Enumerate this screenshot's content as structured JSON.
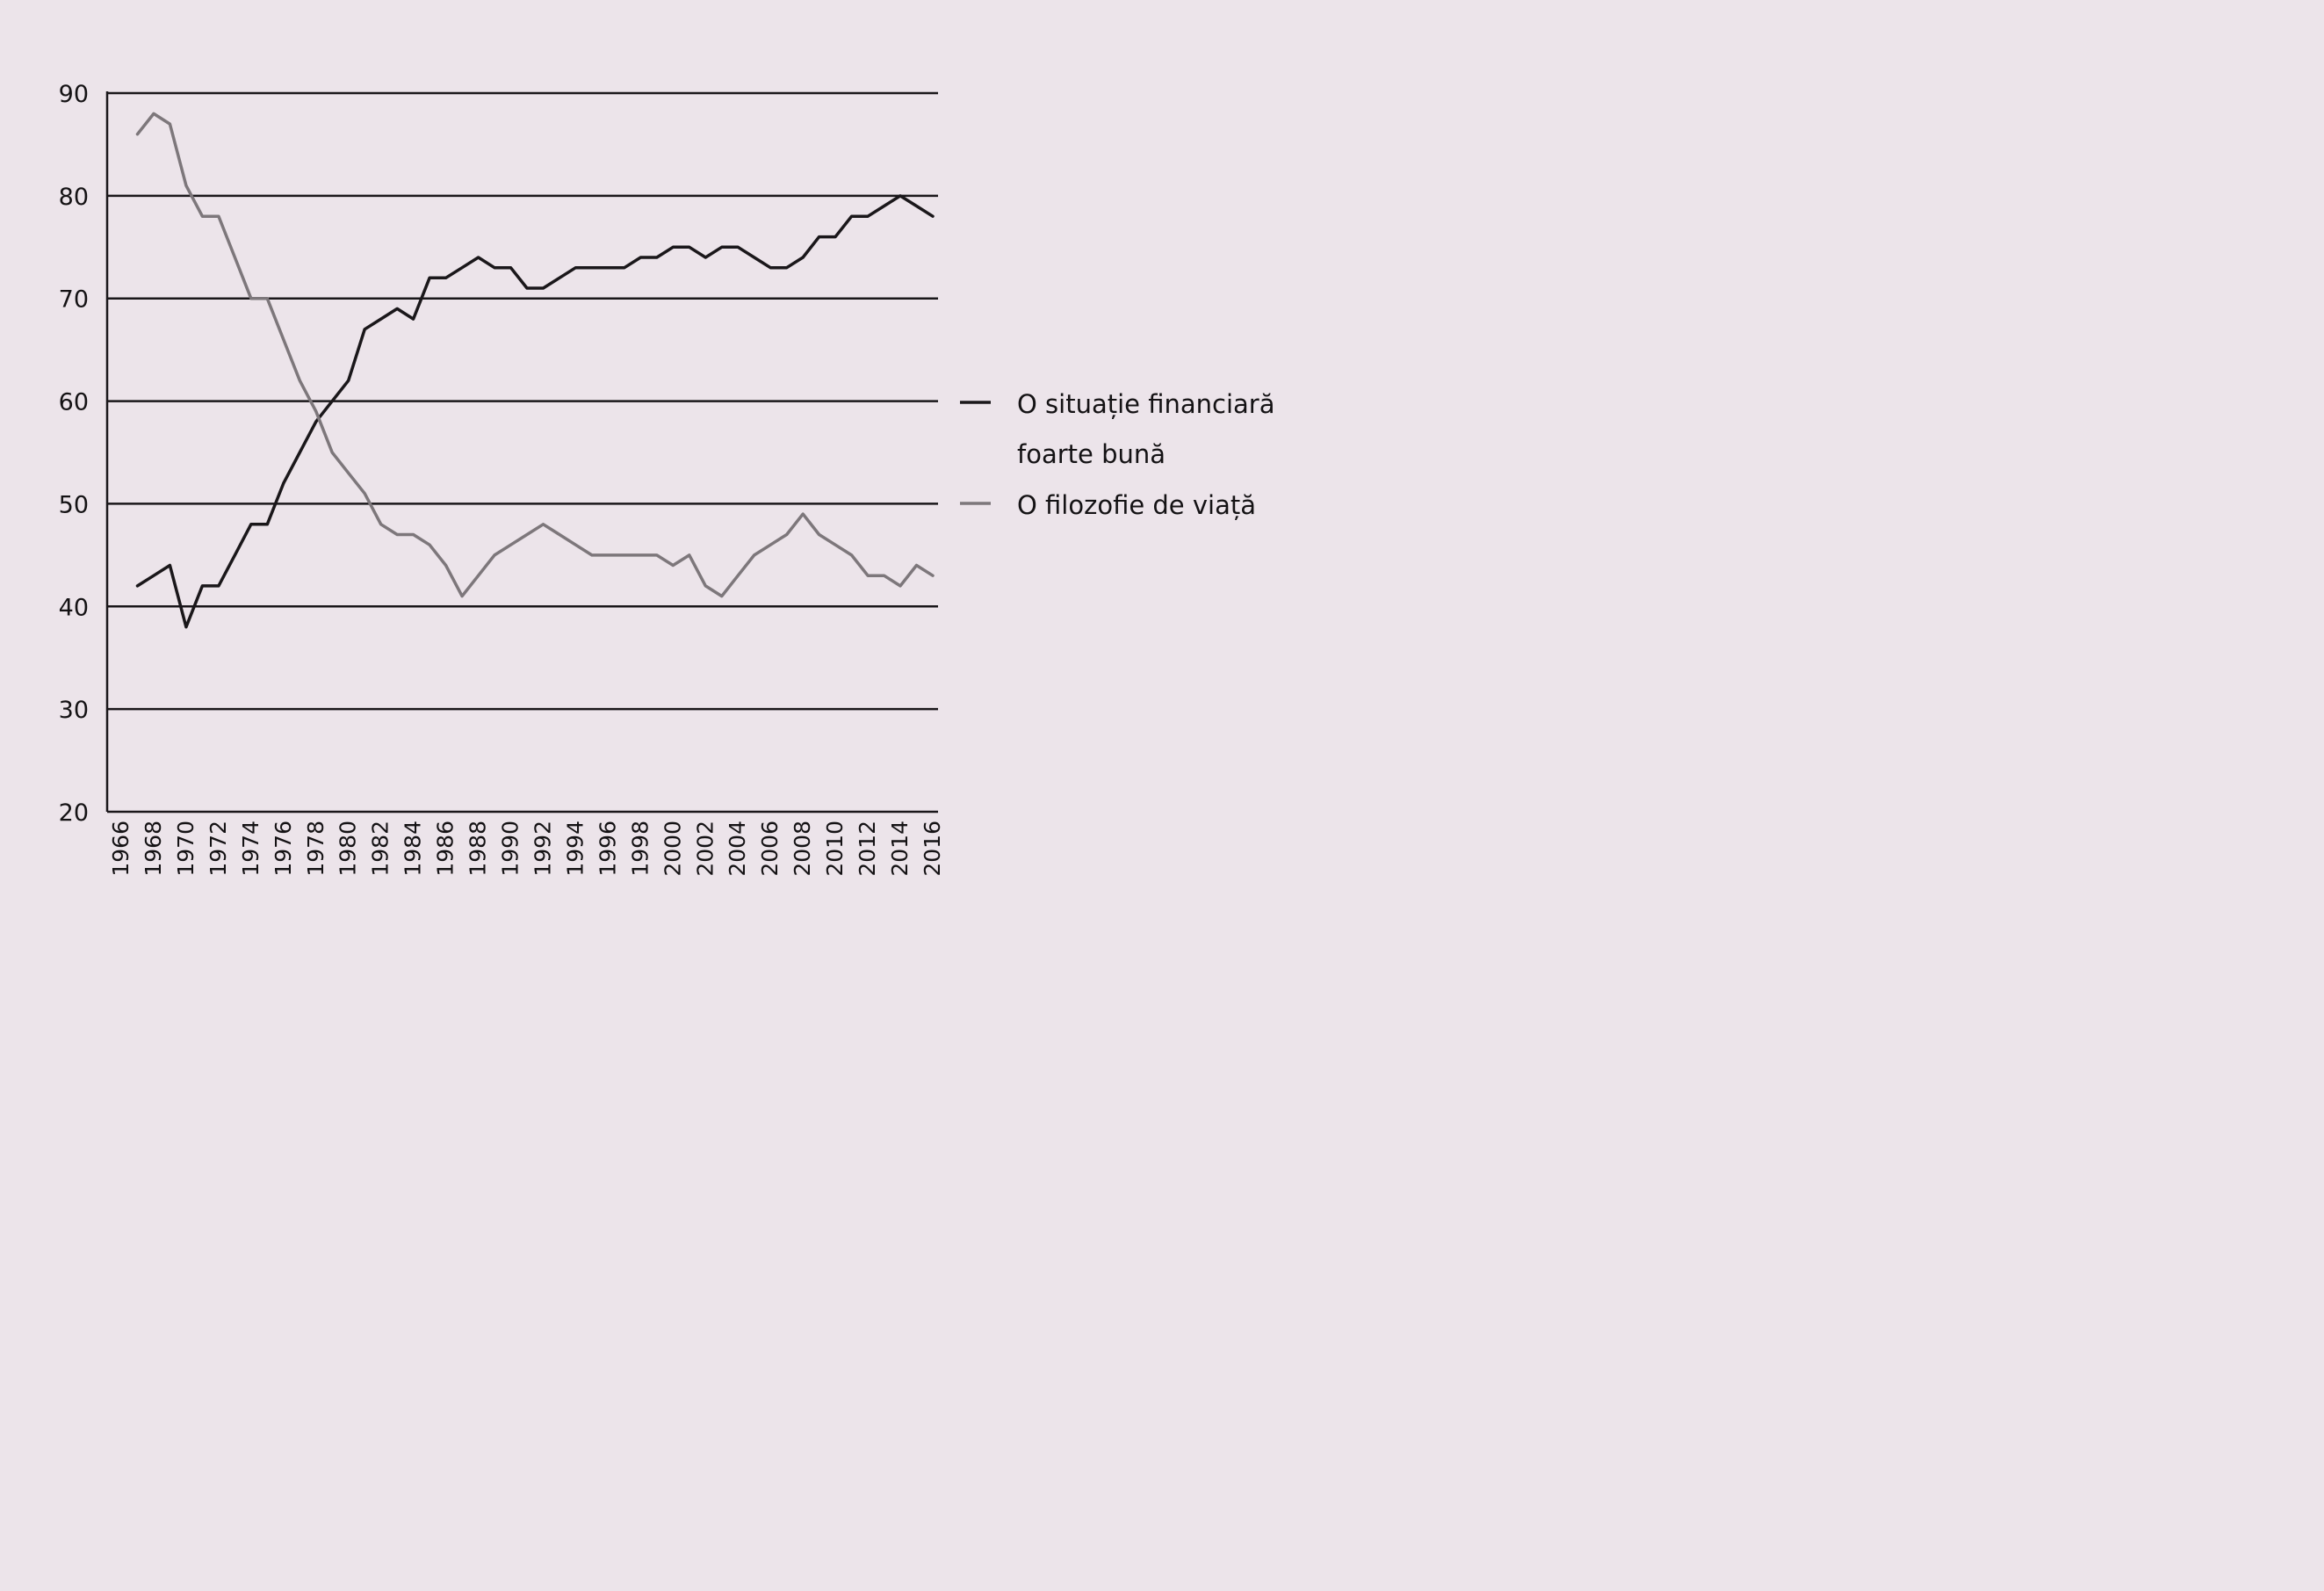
{
  "chart_data": {
    "type": "line",
    "title": "",
    "xlabel": "",
    "ylabel": "",
    "ylim": [
      20,
      90
    ],
    "yticks": [
      90,
      80,
      70,
      60,
      50,
      40,
      30,
      20
    ],
    "xticks": [
      1966,
      1968,
      1970,
      1972,
      1974,
      1976,
      1978,
      1980,
      1982,
      1984,
      1986,
      1988,
      1990,
      1992,
      1994,
      1996,
      1998,
      2000,
      2002,
      2004,
      2006,
      2008,
      2010,
      2012,
      2014,
      2016
    ],
    "grid": "horizontal",
    "legend_position": "right",
    "series": [
      {
        "name": "O situație financiară foarte bună",
        "legend_lines": [
          "O situație financiară",
          "foarte bună"
        ],
        "color": "#1a171a",
        "x": [
          1967,
          1968,
          1969,
          1970,
          1971,
          1972,
          1973,
          1974,
          1975,
          1976,
          1977,
          1978,
          1979,
          1980,
          1981,
          1982,
          1983,
          1984,
          1985,
          1986,
          1987,
          1988,
          1989,
          1990,
          1991,
          1992,
          1993,
          1994,
          1995,
          1996,
          1997,
          1998,
          1999,
          2000,
          2001,
          2002,
          2003,
          2004,
          2005,
          2006,
          2007,
          2008,
          2009,
          2010,
          2011,
          2012,
          2013,
          2014,
          2015,
          2016
        ],
        "y": [
          42,
          43,
          44,
          38,
          42,
          42,
          45,
          48,
          48,
          52,
          55,
          58,
          60,
          62,
          67,
          68,
          69,
          68,
          72,
          72,
          73,
          74,
          73,
          73,
          71,
          71,
          72,
          73,
          73,
          73,
          73,
          74,
          74,
          75,
          75,
          74,
          75,
          75,
          74,
          73,
          73,
          74,
          76,
          76,
          78,
          78,
          79,
          80,
          79,
          78
        ]
      },
      {
        "name": "O filozofie de viață",
        "legend_lines": [
          "O filozofie de viață"
        ],
        "color": "#7d777b",
        "x": [
          1967,
          1968,
          1969,
          1970,
          1971,
          1972,
          1973,
          1974,
          1975,
          1976,
          1977,
          1978,
          1979,
          1980,
          1981,
          1982,
          1983,
          1984,
          1985,
          1986,
          1987,
          1988,
          1989,
          1990,
          1991,
          1992,
          1993,
          1994,
          1995,
          1996,
          1997,
          1998,
          1999,
          2000,
          2001,
          2002,
          2003,
          2004,
          2005,
          2006,
          2007,
          2008,
          2009,
          2010,
          2011,
          2012,
          2013,
          2014,
          2015,
          2016
        ],
        "y": [
          86,
          88,
          87,
          81,
          78,
          78,
          74,
          70,
          70,
          66,
          62,
          59,
          55,
          53,
          51,
          48,
          47,
          47,
          46,
          44,
          41,
          43,
          45,
          46,
          47,
          48,
          47,
          46,
          45,
          45,
          45,
          45,
          45,
          44,
          45,
          42,
          41,
          43,
          45,
          46,
          47,
          49,
          47,
          46,
          45,
          43,
          43,
          42,
          44,
          43
        ]
      }
    ]
  }
}
